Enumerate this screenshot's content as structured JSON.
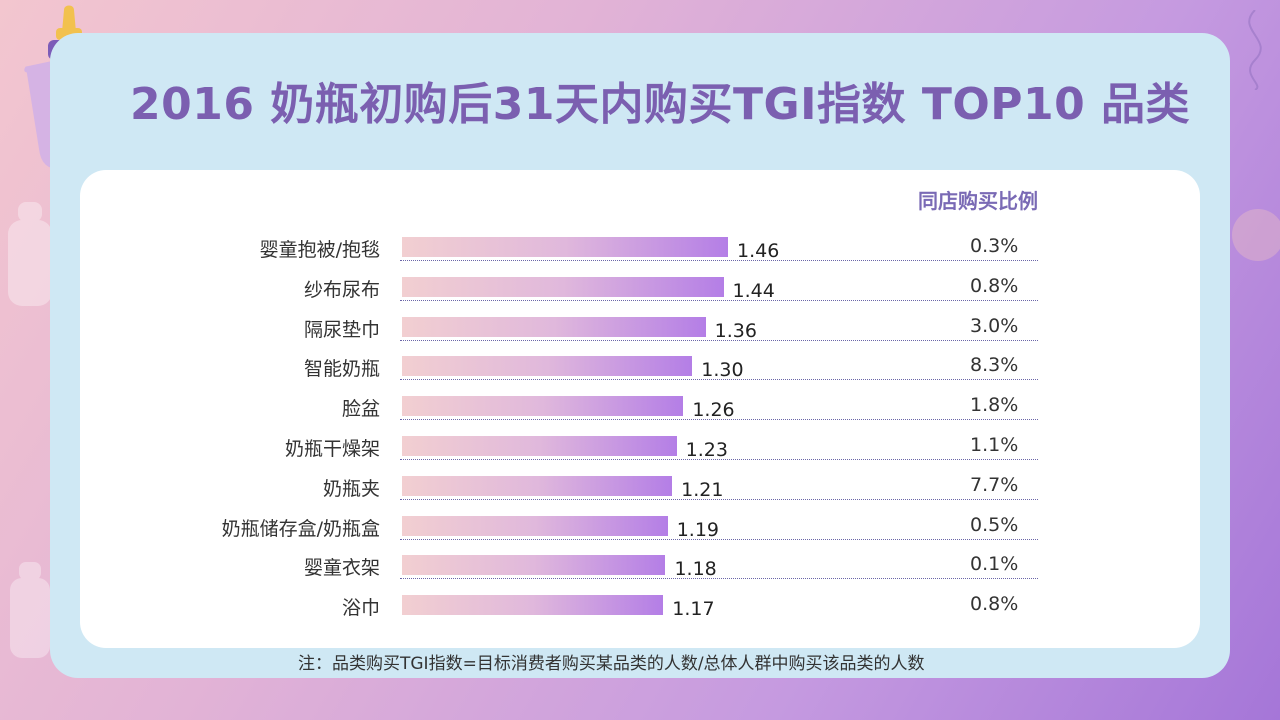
{
  "title": "2016 奶瓶初购后31天内购买TGI指数 TOP10 品类",
  "column_header": "同店购买比例",
  "note": "注：品类购买TGI指数=目标消费者购买某品类的人数/总体人群中购买该品类的人数",
  "chart_data": {
    "type": "bar",
    "orientation": "horizontal",
    "categories": [
      "婴童抱被/抱毯",
      "纱布尿布",
      "隔尿垫巾",
      "智能奶瓶",
      "脸盆",
      "奶瓶干燥架",
      "奶瓶夹",
      "奶瓶储存盒/奶瓶盒",
      "婴童衣架",
      "浴巾"
    ],
    "values": [
      1.46,
      1.44,
      1.36,
      1.3,
      1.26,
      1.23,
      1.21,
      1.19,
      1.18,
      1.17
    ],
    "value_labels": [
      "1.46",
      "1.44",
      "1.36",
      "1.30",
      "1.26",
      "1.23",
      "1.21",
      "1.19",
      "1.18",
      "1.17"
    ],
    "same_store_ratio": [
      "0.3%",
      "0.8%",
      "3.0%",
      "8.3%",
      "1.8%",
      "1.1%",
      "7.7%",
      "0.5%",
      "0.1%",
      "0.8%"
    ],
    "xlim": [
      0,
      1.46
    ],
    "bar_color_start": "#f2cfd1",
    "bar_color_end": "#b47ee6"
  }
}
